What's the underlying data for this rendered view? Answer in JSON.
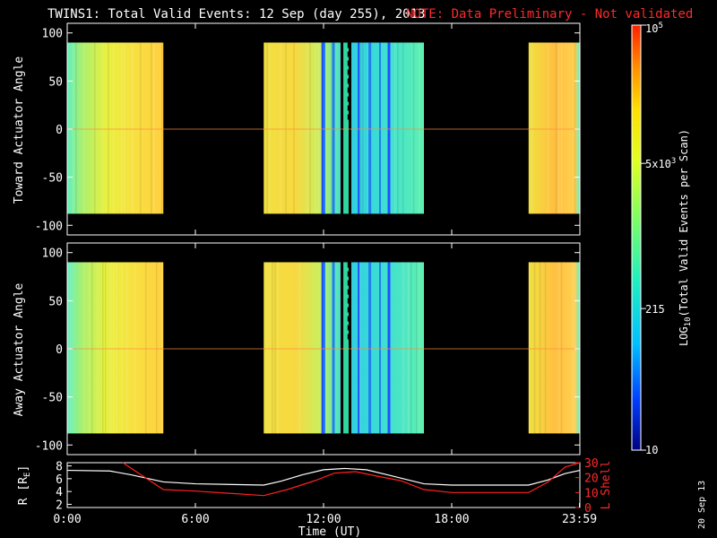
{
  "header": {
    "title": "TWINS1: Total Valid Events: 12 Sep (day 255), 2013",
    "note": "NOTE: Data Preliminary - Not validated"
  },
  "date_stamp": "20 Sep 13",
  "colorbar": {
    "label_prefix": "LOG",
    "label_sub": "10",
    "label_suffix": "(Total Valid Events per Scan)",
    "ticks": [
      {
        "value": 10,
        "text": "10"
      },
      {
        "value": 215,
        "text": "215"
      },
      {
        "value": 5000,
        "text": "5x10",
        "sup": "3"
      },
      {
        "value": 100000,
        "text": "10",
        "sup": "5"
      }
    ],
    "range": [
      10,
      100000
    ],
    "scale": "log",
    "colors": [
      "#000080",
      "#0040ff",
      "#00c0ff",
      "#20f0c0",
      "#80ff60",
      "#e0ff20",
      "#ffe000",
      "#ff9000",
      "#ff2000"
    ]
  },
  "chart_data": [
    {
      "type": "heatmap",
      "name": "toward",
      "ylabel": "Toward Actuator Angle",
      "ylim": [
        -110,
        110
      ],
      "yticks": [
        "100",
        "50",
        "0",
        "-50",
        "-100"
      ],
      "ytick_values": [
        100,
        50,
        0,
        -50,
        -100
      ],
      "angle_range": [
        -88,
        90
      ],
      "xlim_hours": [
        0,
        24
      ],
      "data_intervals_hours": [
        [
          0,
          4.5
        ],
        [
          9.2,
          12.8
        ],
        [
          13.3,
          16.7
        ],
        [
          21.6,
          24
        ]
      ],
      "gap_intervals_hours": [
        [
          12.8,
          13.3
        ]
      ],
      "level_description": "mostly ~5x10^3 (yellow/green), lower near 11-16 UT (cyan/blue)"
    },
    {
      "type": "heatmap",
      "name": "away",
      "ylabel": "Away Actuator Angle",
      "ylim": [
        -110,
        110
      ],
      "yticks": [
        "100",
        "50",
        "0",
        "-50",
        "-100"
      ],
      "ytick_values": [
        100,
        50,
        0,
        -50,
        -100
      ],
      "angle_range": [
        -88,
        90
      ],
      "xlim_hours": [
        0,
        24
      ],
      "data_intervals_hours": [
        [
          0,
          4.5
        ],
        [
          9.2,
          12.8
        ],
        [
          13.3,
          16.7
        ],
        [
          21.6,
          24
        ]
      ],
      "gap_intervals_hours": [
        [
          12.8,
          13.3
        ]
      ]
    },
    {
      "type": "line",
      "name": "orbit",
      "ylabel_left": "R [R",
      "ylabel_left_sub": "E",
      "ylabel_left_end": "]",
      "ylabel_right": "L Shell",
      "xlabel": "Time (UT)",
      "xticks": [
        "0:00",
        "6:00",
        "12:00",
        "18:00",
        "23:59"
      ],
      "xtick_hours": [
        0,
        6,
        12,
        18,
        23.98
      ],
      "ylim_left": [
        1.5,
        8.5
      ],
      "yticks_left": [
        "8",
        "6",
        "4",
        "2"
      ],
      "ytick_values_left": [
        8,
        6,
        4,
        2
      ],
      "ylim_right": [
        0,
        30
      ],
      "yticks_right": [
        "30",
        "20",
        "10",
        "0"
      ],
      "ytick_values_right": [
        30,
        20,
        10,
        0
      ],
      "series": [
        {
          "name": "R",
          "color": "#ffffff",
          "x": [
            0,
            2,
            3,
            4.5,
            6,
            9.2,
            10,
            11,
            12,
            13,
            14,
            15,
            16.7,
            18,
            21.6,
            22.5,
            23.3,
            24
          ],
          "y": [
            7.3,
            7.2,
            6.6,
            5.5,
            5.2,
            5.0,
            5.6,
            6.6,
            7.4,
            7.6,
            7.4,
            6.6,
            5.2,
            5.0,
            5.0,
            5.8,
            6.8,
            7.3
          ]
        },
        {
          "name": "L Shell",
          "color": "#ff2020",
          "x": [
            2.6,
            4.5,
            6,
            9.2,
            10.3,
            11.6,
            12.5,
            13.5,
            14.5,
            15.6,
            16.7,
            18,
            21.6,
            22.5,
            23.3,
            24
          ],
          "y": [
            30,
            12,
            11,
            8,
            12,
            18,
            23,
            24,
            21,
            18,
            12,
            10,
            10,
            17,
            27,
            30
          ]
        }
      ]
    }
  ]
}
